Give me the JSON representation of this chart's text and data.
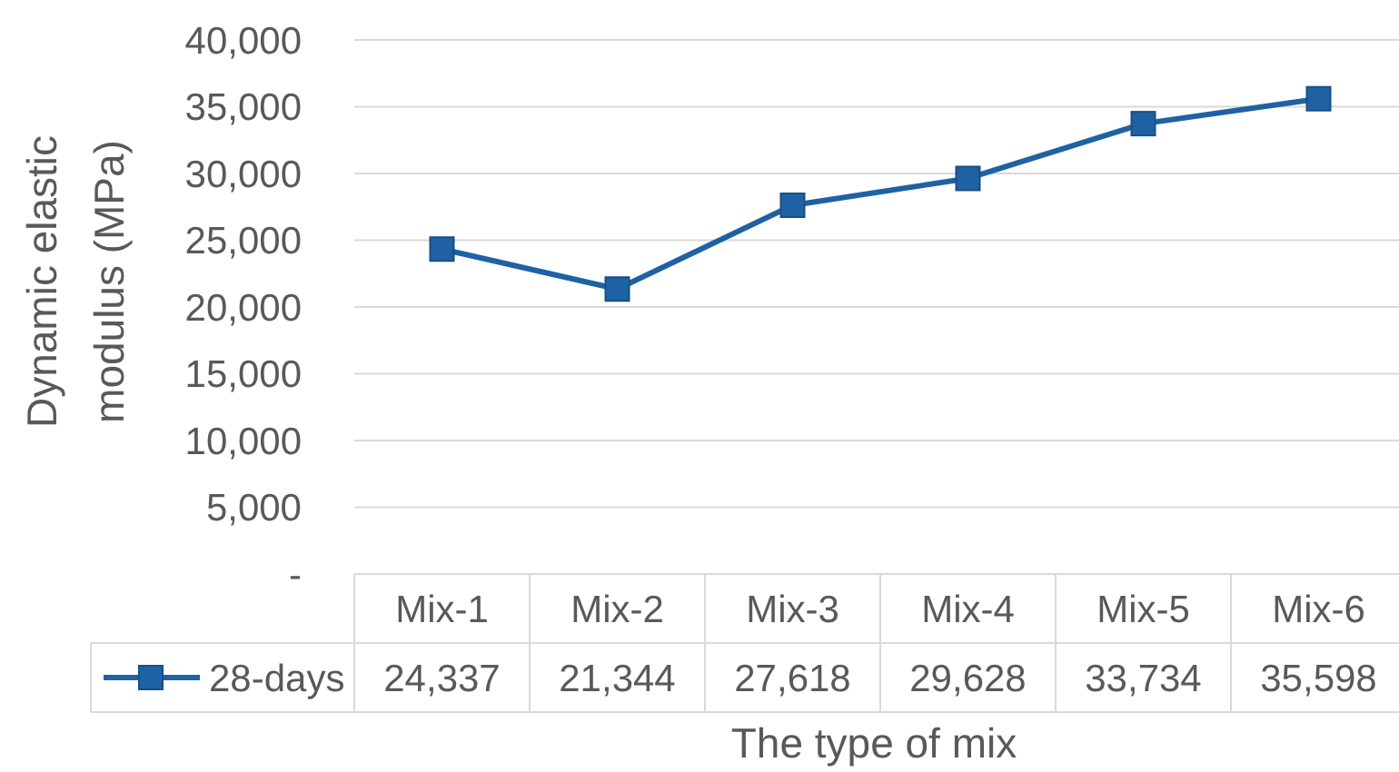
{
  "chart_data": {
    "type": "line",
    "xlabel": "The type of mix",
    "ylabel": "Dynamic elastic modulus (MPa)",
    "categories": [
      "Mix-1",
      "Mix-2",
      "Mix-3",
      "Mix-4",
      "Mix-5",
      "Mix-6"
    ],
    "series": [
      {
        "name": "28-days",
        "color": "#1f62a3",
        "values": [
          24337,
          21344,
          27618,
          29628,
          33734,
          35598
        ],
        "value_labels": [
          "24,337",
          "21,344",
          "27,618",
          "29,628",
          "33,734",
          "35,598"
        ]
      }
    ],
    "ylim": [
      0,
      40000
    ],
    "yticks": [
      {
        "value": 0,
        "label": "-"
      },
      {
        "value": 5000,
        "label": "5,000"
      },
      {
        "value": 10000,
        "label": "10,000"
      },
      {
        "value": 15000,
        "label": "15,000"
      },
      {
        "value": 20000,
        "label": "20,000"
      },
      {
        "value": 25000,
        "label": "25,000"
      },
      {
        "value": 30000,
        "label": "30,000"
      },
      {
        "value": 35000,
        "label": "35,000"
      },
      {
        "value": 40000,
        "label": "40,000"
      }
    ],
    "grid": "y",
    "legend": "bottom left",
    "marker": "square",
    "line_style": "solid"
  }
}
